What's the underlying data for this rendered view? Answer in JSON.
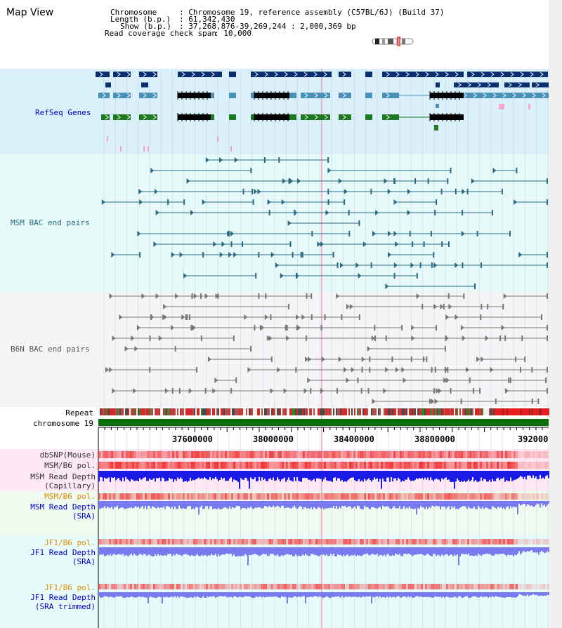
{
  "title": "Map View",
  "info": {
    "chromosome_label": "Chromosome",
    "chromosome_value": ": Chromosome 19, reference assembly (C57BL/6J) (Build 37)",
    "length_label": "Length (b.p.)",
    "length_value": ": 61,342,430",
    "show_label": "Show (b.p.)",
    "show_value": ": 37,268,876-39,269,244 : 2,000,369 bp",
    "coverage_label": "Read coverage check span",
    "coverage_value": ": 10,000"
  },
  "tracks": {
    "refseq": "RefSeq Genes",
    "msm_bac": "MSM BAC end pairs",
    "b6n_bac": "B6N BAC end pairs",
    "repeat": "Repeat",
    "chromosome": "chromosome 19",
    "dbsnp": "dbSNP(Mouse)",
    "msm_b6_pol": "MSM/B6 pol.",
    "msm_depth_cap_1": "MSM Read Depth",
    "msm_depth_cap_2": "(Capillary)",
    "msm_b6_pol_2": "MSM/B6 pol.",
    "msm_depth_sra_1": "MSM Read Depth",
    "msm_depth_sra_2": "(SRA)",
    "jf1_b6_pol": "JF1/B6 pol.",
    "jf1_depth_sra_1": "JF1 Read Depth",
    "jf1_depth_sra_2": "(SRA)",
    "jf1_b6_pol_2": "JF1/B6 pol.",
    "jf1_depth_trim_1": "JF1 Read Depth",
    "jf1_depth_trim_2": "(SRA trimmed)"
  },
  "axis": {
    "ticks": [
      "37600000",
      "38000000",
      "38400000",
      "38800000",
      "392000"
    ]
  },
  "colors": {
    "refseq_bg": "#daf0fa",
    "msm_bg": "#e6fafa",
    "b6n_bg": "#f5f5f8",
    "gene_dark": "#0a2f6e",
    "gene_mid": "#4a90b8",
    "gene_black": "#000000",
    "gene_green": "#1e7a1e",
    "msm_feature": "#2a6a85",
    "b6n_feature": "#777777",
    "depth_blue": "#1a1ae6",
    "depth_light": "#7a7af0",
    "pol_red": "#f03c3c",
    "chrom_green": "#0a6e0a",
    "label_blue": "#0000cc",
    "label_teal": "#2a6a85",
    "label_gray": "#555555",
    "label_orange": "#e08a00"
  }
}
